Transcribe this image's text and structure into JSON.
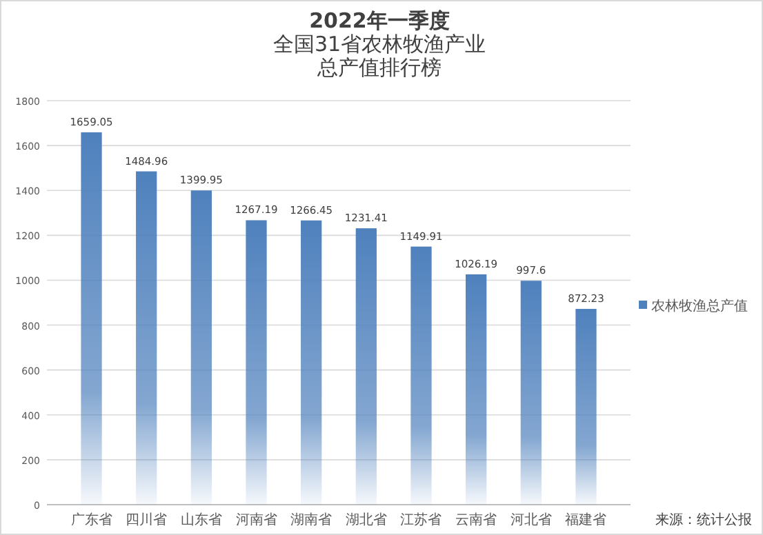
{
  "chart_data": {
    "type": "bar",
    "title": "2022年一季度",
    "subtitle": "全国31省农林牧渔产业总产值排行榜",
    "categories": [
      "广东省",
      "四川省",
      "山东省",
      "河南省",
      "湖南省",
      "湖北省",
      "江苏省",
      "云南省",
      "河北省",
      "福建省"
    ],
    "series": [
      {
        "name": "农林牧渔总产值",
        "color": "#4f81bd",
        "values": [
          1659.05,
          1484.96,
          1399.95,
          1267.19,
          1266.45,
          1231.41,
          1149.91,
          1026.19,
          997.6,
          872.23
        ]
      }
    ],
    "ylim": [
      0,
      1800
    ],
    "yticks": [
      0,
      200,
      400,
      600,
      800,
      1000,
      1200,
      1400,
      1600,
      1800
    ],
    "grid": "y",
    "legend": "right",
    "data_labels": true,
    "annotations": [
      "来源：统计公报"
    ]
  }
}
